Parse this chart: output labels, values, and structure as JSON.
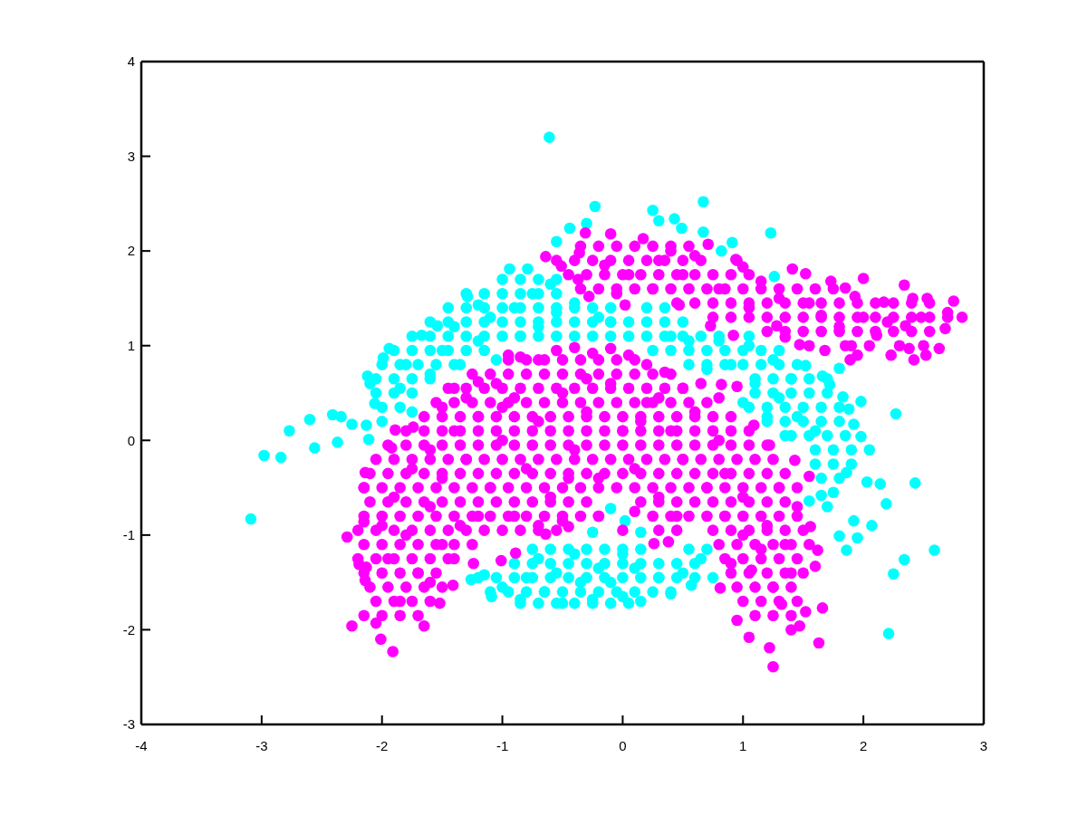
{
  "chart_data": {
    "type": "scatter",
    "xlim": [
      -4,
      3
    ],
    "ylim": [
      -3,
      4
    ],
    "xticks": [
      -4,
      -3,
      -2,
      -1,
      0,
      1,
      2,
      3
    ],
    "yticks": [
      -3,
      -2,
      -1,
      0,
      1,
      2,
      3,
      4
    ],
    "marker": "circle",
    "series": [
      {
        "color": "#00ffff",
        "x": [
          -3.09,
          -2.98,
          -2.84,
          -2.77,
          -2.6,
          -2.56,
          -2.41,
          -2.37,
          -2.34,
          -2.25,
          -2.13,
          -2.11,
          -2.12,
          -2.1,
          -2.06,
          -1.99,
          -1.94,
          -1.85,
          -1.8,
          -1.75,
          -1.67,
          -1.6,
          -1.54,
          -1.5,
          -1.4,
          -1.35,
          -1.29,
          -1.2,
          -1.2,
          -1.1,
          -1.05,
          -0.94,
          -0.9,
          -0.85,
          -0.79,
          -0.75,
          -0.7,
          -0.61,
          -0.6,
          -0.55,
          -0.44,
          -0.55,
          -0.4,
          -0.3,
          -0.23,
          -0.2,
          -0.1,
          0.25,
          0.3,
          0.43,
          0.49,
          0.67,
          0.67,
          0.82,
          0.91,
          1.23,
          1.26,
          0.4,
          0.55,
          0.7,
          0.8,
          0.9,
          1.0,
          1.05,
          1.1,
          1.2,
          1.25,
          1.3,
          1.35,
          1.4,
          1.45,
          1.52,
          1.6,
          1.66,
          1.72,
          1.8,
          1.83,
          1.88,
          1.92,
          1.98,
          1.98,
          2.05,
          2.27,
          1.86,
          2.03,
          2.14,
          2.43,
          2.19,
          1.7,
          1.65,
          1.55,
          1.92,
          1.8,
          2.07,
          1.86,
          1.95,
          2.59,
          2.34,
          2.25,
          2.21,
          0.75,
          0.57,
          0.65,
          0.5,
          0.4,
          0.3,
          0.15,
          0.1,
          0.0,
          0.0,
          -0.1,
          -0.2,
          -0.25,
          -0.35,
          -0.4,
          -0.5,
          -0.55,
          -0.65,
          -0.7,
          -0.8,
          -0.85,
          -1.0,
          -1.09,
          -1.15,
          -1.26,
          -1.0,
          -0.85,
          -0.7,
          -0.55,
          -1.3,
          -1.15,
          -1.0,
          -0.85,
          -0.7,
          -0.55,
          -1.45,
          -1.3,
          -1.15,
          -1.0,
          -0.85,
          -0.7,
          -0.55,
          -0.4,
          -0.25,
          -0.1,
          0.2,
          0.35,
          -1.6,
          -1.45,
          -1.3,
          -1.15,
          -1.0,
          -0.85,
          -0.7,
          -0.55,
          -0.4,
          -0.25,
          -0.1,
          0.05,
          0.2,
          0.35,
          0.5,
          -1.75,
          -1.6,
          -1.45,
          -1.3,
          -1.15,
          -1.0,
          -0.85,
          -0.7,
          -0.55,
          -0.4,
          -0.25,
          -0.1,
          0.05,
          0.2,
          0.35,
          0.5,
          0.65,
          0.8,
          1.05,
          -1.9,
          -1.75,
          -1.6,
          -1.45,
          -1.3,
          -1.15,
          0.25,
          0.4,
          0.55,
          0.7,
          0.85,
          1.0,
          1.15,
          1.3,
          -2.0,
          -1.85,
          -1.7,
          -1.55,
          -1.4,
          0.55,
          0.7,
          0.85,
          1.0,
          1.15,
          1.3,
          1.45,
          -2.05,
          -1.9,
          -1.75,
          -1.6,
          1.1,
          1.25,
          1.4,
          1.55,
          1.7,
          -2.05,
          -1.9,
          -1.75,
          1.1,
          1.25,
          1.4,
          1.55,
          1.7,
          -2.0,
          -1.85,
          1.05,
          1.2,
          1.35,
          1.5,
          1.65,
          1.8,
          -2.0,
          1.2,
          1.35,
          1.5,
          1.65,
          1.8,
          1.4,
          1.55,
          1.7,
          1.85,
          1.6,
          1.75,
          1.9,
          1.6,
          1.75,
          1.9,
          1.65,
          1.8,
          1.75,
          -0.75,
          -0.6,
          -0.45,
          -0.3,
          -0.15,
          0.0,
          0.15,
          0.55,
          0.7,
          -0.9,
          -0.75,
          -0.6,
          -0.45,
          -0.3,
          -0.15,
          0.0,
          0.15,
          0.3,
          0.45,
          0.6,
          -1.2,
          -1.05,
          -0.9,
          -0.75,
          -0.6,
          -0.45,
          -0.3,
          -0.15,
          0.0,
          0.15,
          0.3,
          0.45,
          0.6,
          -1.1,
          -0.95,
          -0.8,
          -0.65,
          -0.5,
          -0.35,
          -0.2,
          -0.05,
          0.1,
          0.25,
          0.4,
          -0.85,
          -0.7,
          -0.55,
          -0.4,
          -0.25,
          -0.1,
          0.05,
          -0.1,
          0.02,
          -0.25,
          0.15
        ],
        "values": [
          -0.83,
          -0.16,
          -0.18,
          0.1,
          0.22,
          -0.08,
          0.27,
          -0.02,
          0.25,
          0.17,
          0.16,
          0.01,
          0.68,
          0.6,
          0.39,
          0.87,
          0.97,
          0.55,
          0.8,
          0.3,
          1.11,
          0.7,
          1.21,
          0.95,
          1.2,
          0.8,
          1.52,
          1.43,
          1.05,
          1.3,
          0.85,
          1.81,
          1.4,
          1.1,
          1.81,
          1.55,
          1.2,
          3.2,
          1.65,
          1.35,
          2.24,
          2.1,
          1.45,
          2.29,
          2.47,
          1.3,
          1.25,
          2.43,
          2.32,
          2.34,
          2.24,
          2.2,
          2.52,
          2.0,
          2.09,
          2.19,
          1.73,
          1.1,
          1.05,
          0.75,
          1.05,
          0.8,
          0.4,
          1.0,
          0.6,
          0.25,
          0.85,
          0.45,
          0.05,
          0.65,
          0.25,
          0.79,
          0.1,
          0.68,
          0.59,
          0.76,
          0.46,
          0.33,
          0.17,
          0.41,
          0.04,
          -0.1,
          0.28,
          -0.34,
          -0.44,
          -0.46,
          -0.45,
          -0.67,
          -0.7,
          -0.58,
          -0.64,
          -0.85,
          -1.01,
          -0.9,
          -1.16,
          -1.03,
          -1.16,
          -1.26,
          -1.41,
          -2.04,
          -1.45,
          -1.53,
          -1.25,
          -1.4,
          -1.62,
          -1.45,
          -1.7,
          -1.35,
          -1.65,
          -1.2,
          -1.5,
          -1.35,
          -1.68,
          -1.5,
          -1.2,
          -1.72,
          -1.4,
          -1.6,
          -1.25,
          -1.45,
          -1.68,
          -1.55,
          -1.65,
          -1.42,
          -1.47,
          1.7,
          1.7,
          1.7,
          1.7,
          1.55,
          1.55,
          1.55,
          1.55,
          1.55,
          1.55,
          1.4,
          1.4,
          1.4,
          1.4,
          1.4,
          1.4,
          1.4,
          1.4,
          1.4,
          1.4,
          1.4,
          1.4,
          1.25,
          1.25,
          1.25,
          1.25,
          1.25,
          1.25,
          1.25,
          1.25,
          1.25,
          1.25,
          1.25,
          1.25,
          1.25,
          1.25,
          1.25,
          1.1,
          1.1,
          1.1,
          1.1,
          1.1,
          1.1,
          1.1,
          1.1,
          1.1,
          1.1,
          1.1,
          1.1,
          1.1,
          1.1,
          1.1,
          1.1,
          1.1,
          1.1,
          1.1,
          0.95,
          0.95,
          0.95,
          0.95,
          0.95,
          0.95,
          0.95,
          0.95,
          0.95,
          0.95,
          0.95,
          0.95,
          0.95,
          0.95,
          0.8,
          0.8,
          0.8,
          0.8,
          0.8,
          0.8,
          0.8,
          0.8,
          0.8,
          0.8,
          0.8,
          0.8,
          0.65,
          0.65,
          0.65,
          0.65,
          0.65,
          0.65,
          0.65,
          0.65,
          0.65,
          0.5,
          0.5,
          0.5,
          0.5,
          0.5,
          0.5,
          0.5,
          0.5,
          0.35,
          0.35,
          0.35,
          0.35,
          0.35,
          0.35,
          0.35,
          0.35,
          0.2,
          0.2,
          0.2,
          0.2,
          0.2,
          0.2,
          0.05,
          0.05,
          0.05,
          0.05,
          -0.1,
          -0.1,
          -0.1,
          -0.25,
          -0.25,
          -0.25,
          -0.4,
          -0.4,
          -0.55,
          -1.15,
          -1.15,
          -1.15,
          -1.15,
          -1.15,
          -1.15,
          -1.15,
          -1.15,
          -1.15,
          -1.3,
          -1.3,
          -1.3,
          -1.3,
          -1.3,
          -1.3,
          -1.3,
          -1.3,
          -1.3,
          -1.3,
          -1.3,
          -1.45,
          -1.45,
          -1.45,
          -1.45,
          -1.45,
          -1.45,
          -1.45,
          -1.45,
          -1.45,
          -1.45,
          -1.45,
          -1.45,
          -1.45,
          -1.6,
          -1.6,
          -1.6,
          -1.6,
          -1.6,
          -1.6,
          -1.6,
          -1.6,
          -1.6,
          -1.6,
          -1.6,
          -1.72,
          -1.72,
          -1.72,
          -1.72,
          -1.72,
          -1.72,
          -1.72,
          -0.72,
          -0.85,
          -0.97,
          -0.97
        ]
      },
      {
        "color": "#ff00ff",
        "x": [
          2.82,
          2.75,
          2.7,
          2.34,
          2.0,
          2.68,
          2.63,
          2.52,
          2.42,
          2.53,
          2.41,
          2.23,
          2.38,
          1.89,
          1.95,
          1.68,
          1.47,
          2.17,
          1.93,
          1.73,
          1.85,
          1.52,
          1.41,
          1.15,
          1.35,
          1.65,
          2.35,
          2.11,
          2.48,
          0.92,
          0.73,
          1.28,
          2.2,
          2.0,
          1.8,
          1.55,
          1.3,
          1.05,
          1.9,
          -0.64,
          -0.51,
          -0.36,
          -0.31,
          -0.37,
          -0.28,
          -0.1,
          0.17,
          0.71,
          1.0,
          0.94,
          0.47,
          0.02,
          -0.15,
          0.05,
          0.3,
          0.25,
          0.5,
          0.6,
          0.8,
          0.4,
          -0.05,
          -1.5,
          -1.4,
          -1.3,
          -1.2,
          -1.05,
          -0.95,
          -0.85,
          -0.7,
          -0.55,
          -0.4,
          -0.25,
          -0.1,
          0.05,
          0.2,
          0.35,
          0.5,
          0.65,
          0.8,
          -1.6,
          -1.5,
          -1.4,
          -1.3,
          -1.2,
          -1.1,
          -1.0,
          -0.9,
          -0.8,
          -0.7,
          -0.6,
          -0.5,
          -0.4,
          -0.3,
          -0.2,
          -0.1,
          0.0,
          0.1,
          0.2,
          0.3,
          0.4,
          0.5,
          0.6,
          0.7,
          0.8,
          0.85,
          -1.2,
          -0.9,
          -0.5,
          -0.2,
          0.1,
          0.45,
          -0.7,
          -0.3,
          0.3,
          -1.0,
          -0.45,
          0.15,
          -2.29,
          -2.25,
          -1.91,
          -2.01,
          -2.19,
          -2.14,
          -2.15,
          -2.15,
          -2.14,
          -2.13,
          -1.65,
          -2.05,
          -1.41,
          -1.52,
          -1.89,
          -1.74,
          -1.92,
          -1.24,
          -1.01,
          -0.89,
          -0.64,
          -0.45,
          0.0,
          -1.9,
          -1.8,
          -1.7,
          -1.85,
          -1.6,
          -1.5,
          -1.75,
          -1.95,
          -1.6,
          -2.0,
          -1.35,
          -1.4,
          1.25,
          1.22,
          1.05,
          0.95,
          1.47,
          1.4,
          1.63,
          1.66,
          1.52,
          0.81,
          1.6,
          1.62,
          1.56,
          1.55,
          1.43,
          1.22,
          1.09,
          0.82,
          0.95,
          0.26,
          0.38,
          1.07,
          1.32,
          1.0,
          1.2,
          1.3,
          1.15,
          1.4,
          1.0,
          0.9,
          1.25,
          1.35,
          0.85,
          1.45,
          -0.95,
          -0.8,
          -0.65,
          -0.5,
          -0.35,
          -0.2,
          -0.05,
          0.1,
          -1.25,
          -1.1,
          -0.95,
          -0.8,
          -0.65,
          -0.5,
          -0.35,
          -0.2,
          -0.05,
          0.1,
          0.25,
          0.4,
          -1.45,
          -1.3,
          -1.15,
          -1.0,
          -0.85,
          -0.7,
          -0.55,
          -0.4,
          -0.25,
          -0.1,
          0.05,
          0.2,
          0.35,
          0.5,
          -1.55,
          -1.4,
          -1.25,
          -1.1,
          -0.95,
          -0.8,
          -0.65,
          -0.5,
          -0.35,
          -0.2,
          -0.05,
          0.1,
          0.25,
          0.4,
          0.55,
          0.7,
          -1.65,
          -1.5,
          -1.35,
          -1.2,
          -1.05,
          -0.9,
          -0.75,
          -0.6,
          -0.45,
          -0.3,
          -0.15,
          0.0,
          0.15,
          0.3,
          0.45,
          0.6,
          0.75,
          0.9,
          -1.8,
          -1.65,
          -1.5,
          -1.35,
          -1.2,
          -1.05,
          -0.9,
          -0.75,
          -0.6,
          -0.45,
          -0.3,
          -0.15,
          0.0,
          0.15,
          0.3,
          0.45,
          0.6,
          0.75,
          0.9,
          1.05,
          -1.95,
          -1.8,
          -1.65,
          -1.5,
          -1.35,
          -1.2,
          -1.05,
          -0.9,
          -0.75,
          -0.6,
          -0.45,
          -0.3,
          -0.15,
          0.0,
          0.15,
          0.3,
          0.45,
          0.6,
          0.75,
          0.9,
          1.05,
          1.2,
          -2.05,
          -1.9,
          -1.75,
          -1.6,
          -1.45,
          -1.3,
          -1.15,
          -1.0,
          -0.85,
          -0.7,
          -0.55,
          -0.4,
          -0.25,
          -0.1,
          0.05,
          0.2,
          0.35,
          0.5,
          0.65,
          0.8,
          0.95,
          1.1,
          1.25,
          -2.1,
          -1.95,
          -1.8,
          -1.65,
          -1.5,
          -1.35,
          -1.2,
          -1.05,
          -0.9,
          -0.75,
          -0.6,
          -0.45,
          -0.3,
          -0.15,
          0.0,
          0.15,
          0.3,
          0.45,
          0.6,
          0.75,
          0.9,
          1.05,
          1.2,
          1.35,
          -2.15,
          -2.0,
          -1.85,
          -1.7,
          -1.55,
          -1.4,
          -1.25,
          -1.1,
          -0.95,
          -0.8,
          -0.65,
          -0.5,
          -0.35,
          -0.2,
          -0.05,
          0.1,
          0.25,
          0.4,
          0.55,
          0.7,
          0.85,
          1.0,
          1.15,
          1.3,
          1.45,
          -2.1,
          -1.95,
          -1.8,
          -1.65,
          -1.5,
          -1.35,
          -1.2,
          -1.05,
          -0.9,
          -0.75,
          -0.6,
          -0.45,
          -0.3,
          0.15,
          0.3,
          0.45,
          0.6,
          0.75,
          0.9,
          1.05,
          1.2,
          1.35,
          -2.15,
          -2.0,
          -1.85,
          -1.7,
          -1.55,
          -1.4,
          -1.25,
          -1.1,
          -0.95,
          -0.8,
          -0.65,
          -0.5,
          -0.35,
          -0.2,
          0.25,
          0.4,
          0.7,
          0.85,
          1.0,
          1.15,
          1.3,
          1.45,
          -2.2,
          -2.05,
          -1.9,
          -1.75,
          -1.6,
          -1.45,
          -1.3,
          -1.15,
          -1.0,
          -0.85,
          -0.7,
          -0.55,
          0.3,
          0.45,
          0.75,
          0.9,
          1.05,
          1.2,
          1.35,
          1.5,
          -2.15,
          -2.0,
          -1.85,
          -1.7,
          -1.55,
          -1.4,
          -1.25,
          0.8,
          0.95,
          1.1,
          1.25,
          1.4,
          1.55,
          -2.2,
          -2.05,
          -1.9,
          -1.75,
          -1.6,
          -1.45,
          0.85,
          1.0,
          1.15,
          1.3,
          1.45,
          -2.15,
          -2.0,
          -1.85,
          -1.7,
          -1.55,
          0.9,
          1.05,
          1.2,
          1.35,
          1.5,
          -2.1,
          -1.95,
          -1.8,
          -1.65,
          -1.5,
          0.95,
          1.1,
          1.25,
          1.4,
          -2.05,
          -1.9,
          -1.75,
          -1.6,
          1.0,
          1.15,
          1.3,
          1.45,
          -2.15,
          -2.0,
          -1.85,
          -1.7,
          1.1,
          1.25,
          1.4,
          -0.35,
          -0.2,
          -0.05,
          0.1,
          0.25,
          0.4,
          0.55,
          -0.55,
          -0.4,
          -0.25,
          -0.1,
          0.05,
          0.2,
          0.35,
          0.5,
          0.65,
          0.95,
          -0.45,
          -0.3,
          -0.15,
          0.0,
          0.15,
          0.3,
          0.45,
          0.6,
          0.75,
          0.9,
          1.05,
          -0.35,
          -0.2,
          -0.05,
          0.1,
          0.25,
          0.4,
          0.55,
          0.7,
          0.85,
          1.0,
          1.15,
          1.3,
          1.45,
          1.6,
          1.75,
          0.45,
          0.6,
          0.75,
          0.9,
          1.05,
          1.2,
          1.35,
          1.5,
          1.65,
          1.8,
          1.95,
          2.1,
          2.25,
          2.4,
          2.55,
          0.75,
          0.9,
          1.05,
          1.2,
          1.35,
          1.5,
          1.65,
          1.8,
          1.95,
          2.1,
          2.25,
          2.4,
          2.55,
          2.7,
          1.2,
          1.35,
          1.5,
          1.65,
          1.8,
          1.95,
          2.1,
          2.25,
          2.4,
          2.55,
          1.55,
          1.85,
          2.05,
          2.3,
          2.5,
          0.55
        ],
        "values": [
          1.3,
          1.47,
          1.35,
          1.64,
          1.71,
          1.18,
          0.97,
          0.9,
          0.85,
          1.5,
          1.5,
          0.9,
          0.97,
          0.85,
          0.9,
          0.95,
          1.01,
          1.46,
          1.52,
          1.68,
          1.61,
          1.76,
          1.81,
          1.68,
          1.09,
          1.32,
          1.21,
          1.11,
          1.3,
          1.11,
          1.21,
          1.21,
          1.25,
          1.3,
          1.2,
          1.45,
          1.5,
          1.4,
          1.0,
          1.94,
          1.84,
          1.98,
          2.19,
          1.7,
          1.52,
          2.18,
          2.13,
          2.07,
          1.83,
          1.91,
          1.43,
          1.43,
          1.85,
          1.75,
          1.9,
          1.6,
          1.75,
          1.95,
          1.6,
          2.0,
          1.55,
          0.35,
          0.55,
          0.45,
          0.62,
          0.6,
          0.9,
          0.88,
          0.85,
          0.95,
          0.98,
          0.92,
          0.97,
          0.9,
          0.8,
          0.72,
          0.55,
          0.6,
          0.45,
          -0.1,
          -0.4,
          0.1,
          -0.2,
          0.25,
          -0.5,
          0.0,
          0.45,
          -0.3,
          0.2,
          -0.6,
          0.5,
          -0.1,
          0.3,
          -0.4,
          0.6,
          0.1,
          -0.3,
          0.4,
          -0.6,
          0.1,
          -0.2,
          0.3,
          -0.5,
          0.0,
          -0.35,
          -0.8,
          -0.8,
          -0.85,
          -0.8,
          -0.75,
          -0.8,
          -0.9,
          0.65,
          0.45,
          0.35,
          -0.4,
          0.2,
          -1.02,
          -1.96,
          -2.23,
          -2.1,
          -1.31,
          -0.34,
          -0.5,
          -0.86,
          -1.48,
          -1.34,
          -1.96,
          -1.93,
          -1.53,
          -1.72,
          0.11,
          0.14,
          -0.08,
          -1.3,
          -1.27,
          -1.19,
          -0.99,
          -0.91,
          -0.95,
          -0.6,
          -1.0,
          -1.4,
          -1.7,
          -0.7,
          -1.1,
          -0.3,
          -1.25,
          -1.5,
          -0.9,
          -0.9,
          -1.25,
          -2.39,
          -2.19,
          -2.08,
          -1.9,
          -1.96,
          -2.0,
          -2.14,
          -1.77,
          -1.81,
          -1.56,
          -1.33,
          -1.16,
          -0.91,
          -0.38,
          -0.21,
          -0.05,
          0.16,
          0.59,
          0.57,
          -1.09,
          -1.07,
          -1.37,
          -1.73,
          -0.6,
          -0.9,
          -0.5,
          -1.15,
          -1.4,
          -1.0,
          -1.3,
          -1.55,
          -1.1,
          -0.8,
          -0.7,
          0.85,
          0.85,
          0.85,
          0.85,
          0.85,
          0.85,
          0.85,
          0.85,
          0.7,
          0.7,
          0.7,
          0.7,
          0.7,
          0.7,
          0.7,
          0.7,
          0.7,
          0.7,
          0.7,
          0.7,
          0.55,
          0.55,
          0.55,
          0.55,
          0.55,
          0.55,
          0.55,
          0.55,
          0.55,
          0.55,
          0.55,
          0.55,
          0.55,
          0.55,
          0.4,
          0.4,
          0.4,
          0.4,
          0.4,
          0.4,
          0.4,
          0.4,
          0.4,
          0.4,
          0.4,
          0.4,
          0.4,
          0.4,
          0.4,
          0.4,
          0.25,
          0.25,
          0.25,
          0.25,
          0.25,
          0.25,
          0.25,
          0.25,
          0.25,
          0.25,
          0.25,
          0.25,
          0.25,
          0.25,
          0.25,
          0.25,
          0.25,
          0.25,
          0.1,
          0.1,
          0.1,
          0.1,
          0.1,
          0.1,
          0.1,
          0.1,
          0.1,
          0.1,
          0.1,
          0.1,
          0.1,
          0.1,
          0.1,
          0.1,
          0.1,
          0.1,
          0.1,
          0.1,
          -0.05,
          -0.05,
          -0.05,
          -0.05,
          -0.05,
          -0.05,
          -0.05,
          -0.05,
          -0.05,
          -0.05,
          -0.05,
          -0.05,
          -0.05,
          -0.05,
          -0.05,
          -0.05,
          -0.05,
          -0.05,
          -0.05,
          -0.05,
          -0.05,
          -0.05,
          -0.2,
          -0.2,
          -0.2,
          -0.2,
          -0.2,
          -0.2,
          -0.2,
          -0.2,
          -0.2,
          -0.2,
          -0.2,
          -0.2,
          -0.2,
          -0.2,
          -0.2,
          -0.2,
          -0.2,
          -0.2,
          -0.2,
          -0.2,
          -0.2,
          -0.2,
          -0.2,
          -0.35,
          -0.35,
          -0.35,
          -0.35,
          -0.35,
          -0.35,
          -0.35,
          -0.35,
          -0.35,
          -0.35,
          -0.35,
          -0.35,
          -0.35,
          -0.35,
          -0.35,
          -0.35,
          -0.35,
          -0.35,
          -0.35,
          -0.35,
          -0.35,
          -0.35,
          -0.35,
          -0.35,
          -0.5,
          -0.5,
          -0.5,
          -0.5,
          -0.5,
          -0.5,
          -0.5,
          -0.5,
          -0.5,
          -0.5,
          -0.5,
          -0.5,
          -0.5,
          -0.5,
          -0.5,
          -0.5,
          -0.5,
          -0.5,
          -0.5,
          -0.5,
          -0.5,
          -0.5,
          -0.5,
          -0.5,
          -0.5,
          -0.65,
          -0.65,
          -0.65,
          -0.65,
          -0.65,
          -0.65,
          -0.65,
          -0.65,
          -0.65,
          -0.65,
          -0.65,
          -0.65,
          -0.65,
          -0.65,
          -0.65,
          -0.65,
          -0.65,
          -0.65,
          -0.65,
          -0.65,
          -0.65,
          -0.65,
          -0.8,
          -0.8,
          -0.8,
          -0.8,
          -0.8,
          -0.8,
          -0.8,
          -0.8,
          -0.8,
          -0.8,
          -0.8,
          -0.8,
          -0.8,
          -0.8,
          -0.8,
          -0.8,
          -0.8,
          -0.8,
          -0.8,
          -0.8,
          -0.8,
          -0.8,
          -0.95,
          -0.95,
          -0.95,
          -0.95,
          -0.95,
          -0.95,
          -0.95,
          -0.95,
          -0.95,
          -0.95,
          -0.95,
          -0.95,
          -0.95,
          -0.95,
          -0.95,
          -0.95,
          -0.95,
          -0.95,
          -0.95,
          -0.95,
          -1.1,
          -1.1,
          -1.1,
          -1.1,
          -1.1,
          -1.1,
          -1.1,
          -1.1,
          -1.1,
          -1.1,
          -1.1,
          -1.1,
          -1.1,
          -1.25,
          -1.25,
          -1.25,
          -1.25,
          -1.25,
          -1.25,
          -1.25,
          -1.25,
          -1.25,
          -1.25,
          -1.25,
          -1.4,
          -1.4,
          -1.4,
          -1.4,
          -1.4,
          -1.4,
          -1.4,
          -1.4,
          -1.4,
          -1.4,
          -1.55,
          -1.55,
          -1.55,
          -1.55,
          -1.55,
          -1.55,
          -1.55,
          -1.55,
          -1.55,
          -1.7,
          -1.7,
          -1.7,
          -1.7,
          -1.7,
          -1.7,
          -1.7,
          -1.7,
          -1.85,
          -1.85,
          -1.85,
          -1.85,
          -1.85,
          -1.85,
          -1.85,
          2.05,
          2.05,
          2.05,
          2.05,
          2.05,
          2.05,
          2.05,
          1.9,
          1.9,
          1.9,
          1.9,
          1.9,
          1.9,
          1.9,
          1.9,
          1.9,
          1.9,
          1.75,
          1.75,
          1.75,
          1.75,
          1.75,
          1.75,
          1.75,
          1.75,
          1.75,
          1.75,
          1.75,
          1.6,
          1.6,
          1.6,
          1.6,
          1.6,
          1.6,
          1.6,
          1.6,
          1.6,
          1.6,
          1.6,
          1.6,
          1.6,
          1.6,
          1.6,
          1.45,
          1.45,
          1.45,
          1.45,
          1.45,
          1.45,
          1.45,
          1.45,
          1.45,
          1.45,
          1.45,
          1.45,
          1.45,
          1.45,
          1.45,
          1.3,
          1.3,
          1.3,
          1.3,
          1.3,
          1.3,
          1.3,
          1.3,
          1.3,
          1.3,
          1.3,
          1.3,
          1.3,
          1.3,
          1.15,
          1.15,
          1.15,
          1.15,
          1.15,
          1.15,
          1.15,
          1.15,
          1.15,
          1.15,
          1.0,
          1.0,
          1.0,
          1.0,
          1.0,
          -0.8
        ]
      }
    ]
  }
}
